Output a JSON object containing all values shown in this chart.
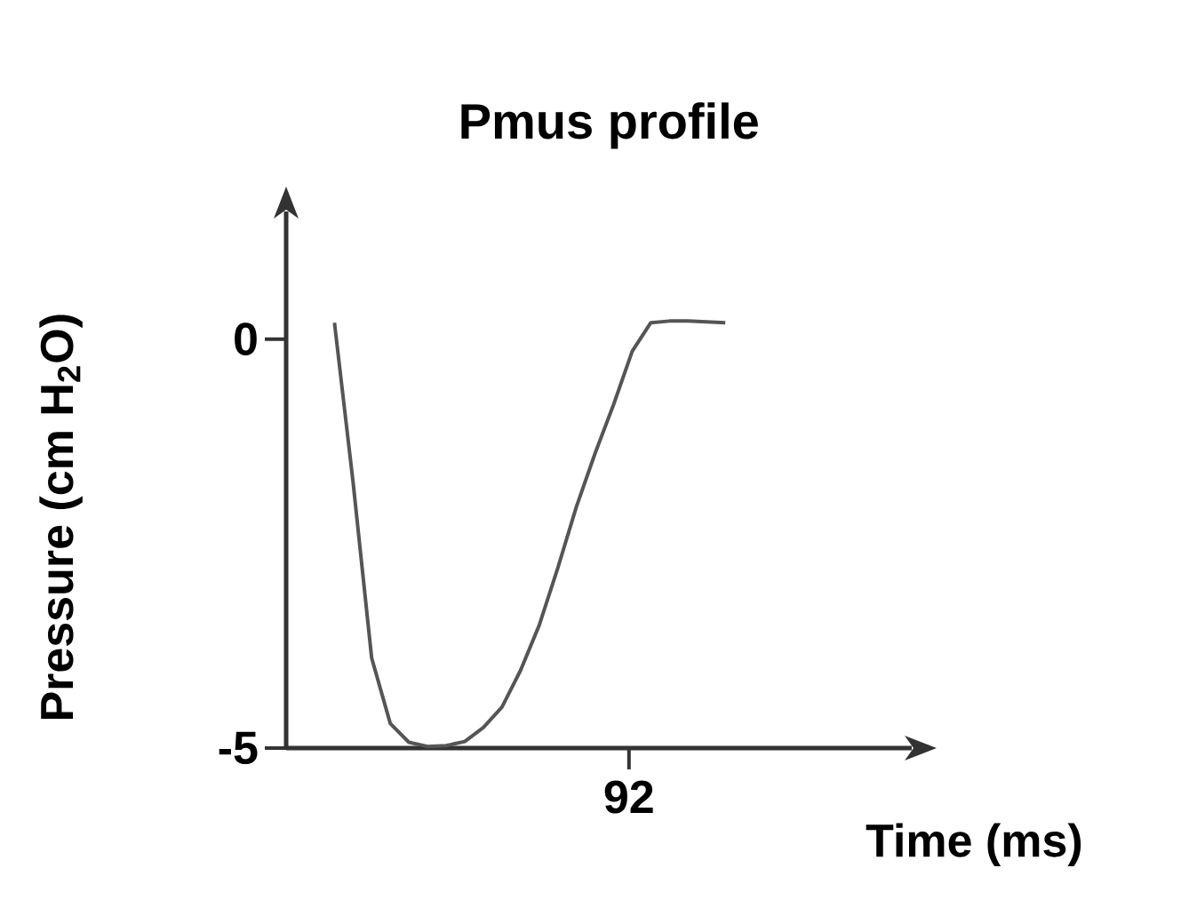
{
  "chart_data": {
    "type": "line",
    "title": "Pmus profile",
    "xlabel": "Time (ms)",
    "ylabel": "Pressure (cm H$_{2}$O)",
    "categories": [
      null,
      null,
      null,
      null,
      null,
      null,
      null,
      null,
      null,
      null,
      null,
      null,
      null,
      null,
      null,
      null,
      null,
      null,
      null,
      null,
      null,
      null
    ],
    "values": [
      0.2,
      -1.75,
      -3.9,
      -4.7,
      -4.93,
      -4.98,
      -4.97,
      -4.92,
      -4.75,
      -4.5,
      -4.05,
      -3.5,
      -2.8,
      -2.05,
      -1.4,
      -0.8,
      -0.15,
      0.2,
      0.22,
      0.22,
      0.21,
      0.2
    ],
    "annotations": [
      "92"
    ],
    "color": "#555555",
    "ylim": [
      -5,
      1.56
    ],
    "yticks": [
      {
        "value": -5,
        "label": "-5"
      },
      {
        "value": 0,
        "label": "0"
      }
    ],
    "marker": "none",
    "line_style": "solid"
  }
}
